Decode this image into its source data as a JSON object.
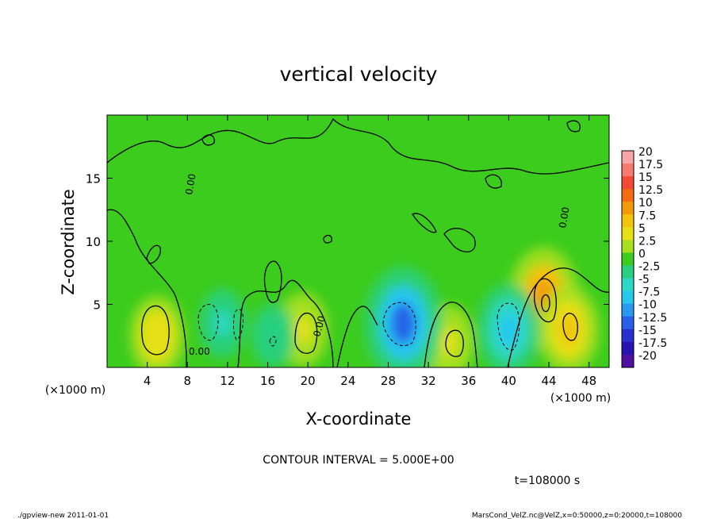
{
  "chart_data": {
    "type": "heatmap",
    "title": "vertical velocity",
    "xlabel": "X-coordinate",
    "ylabel": "Z-coordinate",
    "x_unit": "(×1000 m)",
    "z_unit": "(×1000 m)",
    "xlim": [
      0,
      50
    ],
    "ylim": [
      0,
      20
    ],
    "x_ticks": [
      4,
      8,
      12,
      16,
      20,
      24,
      28,
      32,
      36,
      40,
      44,
      48
    ],
    "y_ticks": [
      5,
      10,
      15
    ],
    "contour_interval_text": "CONTOUR INTERVAL = 5.000E+00",
    "contour_labels": [
      "0.00",
      "0.00",
      "0.00",
      "0.00"
    ],
    "colorbar": {
      "labels": [
        "20",
        "17.5",
        "15",
        "12.5",
        "10",
        "7.5",
        "5",
        "2.5",
        "0",
        "-2.5",
        "-5",
        "-7.5",
        "-10",
        "-12.5",
        "-15",
        "-17.5",
        "-20"
      ],
      "colors": [
        "#f7a6a6",
        "#f67a6e",
        "#f24a34",
        "#f26b10",
        "#f39a0a",
        "#f2c40e",
        "#e6e015",
        "#a8e020",
        "#3ccc1e",
        "#28d080",
        "#2ed8c8",
        "#28c8ee",
        "#2898f0",
        "#2860e8",
        "#2830d0",
        "#2812b0",
        "#5010a0"
      ]
    },
    "features": [
      {
        "x": 5.0,
        "z": 2.5,
        "value": 6,
        "kind": "updraft"
      },
      {
        "x": 19.5,
        "z": 3.0,
        "value": 5,
        "kind": "updraft"
      },
      {
        "x": 34.0,
        "z": 2.0,
        "value": 5,
        "kind": "updraft"
      },
      {
        "x": 43.5,
        "z": 5.5,
        "value": 10,
        "kind": "updraft"
      },
      {
        "x": 46.0,
        "z": 3.0,
        "value": 7.5,
        "kind": "updraft"
      },
      {
        "x": 29.5,
        "z": 3.5,
        "value": -12,
        "kind": "downdraft"
      },
      {
        "x": 40.0,
        "z": 3.0,
        "value": -8,
        "kind": "downdraft"
      },
      {
        "x": 11.5,
        "z": 3.5,
        "value": -4,
        "kind": "downdraft"
      },
      {
        "x": 16.5,
        "z": 2.5,
        "value": -3,
        "kind": "downdraft"
      }
    ]
  },
  "time_label": "t=108000 s",
  "footer_left": "./gpview-new  2011-01-01",
  "footer_right": "MarsCond_VelZ.nc@VelZ,x=0:50000,z=0:20000,t=108000"
}
